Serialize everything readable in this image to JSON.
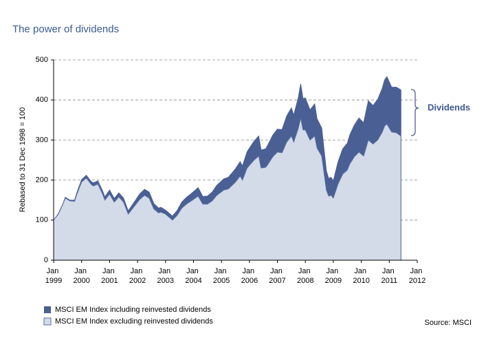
{
  "chart_data": {
    "type": "area",
    "title": "The power of dividends",
    "y_label": "Rebased to 31 Dec 1998 = 100",
    "annotation": "Dividends",
    "source": "Source: MSCI",
    "grid": true,
    "ylim": [
      0,
      500
    ],
    "yticks": [
      0,
      100,
      200,
      300,
      400,
      500
    ],
    "xlim": [
      "1999-01",
      "2012-01"
    ],
    "xticks": [
      {
        "value": "1999-01",
        "label": "Jan 1999"
      },
      {
        "value": "2000-01",
        "label": "Jan 2000"
      },
      {
        "value": "2001-01",
        "label": "Jan 2001"
      },
      {
        "value": "2002-01",
        "label": "Jan 2002"
      },
      {
        "value": "2003-01",
        "label": "Jan 2003"
      },
      {
        "value": "2004-01",
        "label": "Jan 2004"
      },
      {
        "value": "2005-01",
        "label": "Jan 2005"
      },
      {
        "value": "2006-01",
        "label": "Jan 2006"
      },
      {
        "value": "2007-01",
        "label": "Jan 2007"
      },
      {
        "value": "2008-01",
        "label": "Jan 2008"
      },
      {
        "value": "2009-01",
        "label": "Jan 2009"
      },
      {
        "value": "2010-01",
        "label": "Jan 2010"
      },
      {
        "value": "2011-01",
        "label": "Jan 2011"
      },
      {
        "value": "2012-01",
        "label": "Jan 2012"
      }
    ],
    "x": [
      "1999-01",
      "1999-03",
      "1999-05",
      "1999-06",
      "1999-08",
      "1999-10",
      "1999-11",
      "2000-01",
      "2000-03",
      "2000-05",
      "2000-06",
      "2000-08",
      "2000-10",
      "2000-11",
      "2001-01",
      "2001-03",
      "2001-05",
      "2001-07",
      "2001-09",
      "2001-11",
      "2002-02",
      "2002-04",
      "2002-06",
      "2002-08",
      "2002-10",
      "2002-11",
      "2003-01",
      "2003-03",
      "2003-04",
      "2003-06",
      "2003-08",
      "2003-10",
      "2003-12",
      "2004-03",
      "2004-05",
      "2004-07",
      "2004-09",
      "2004-11",
      "2005-02",
      "2005-04",
      "2005-07",
      "2005-09",
      "2005-10",
      "2005-12",
      "2006-03",
      "2006-05",
      "2006-06",
      "2006-08",
      "2006-09",
      "2006-11",
      "2007-01",
      "2007-03",
      "2007-05",
      "2007-07",
      "2007-08",
      "2007-10",
      "2007-11",
      "2007-12",
      "2008-01",
      "2008-03",
      "2008-05",
      "2008-06",
      "2008-08",
      "2008-10",
      "2008-11",
      "2008-12",
      "2009-01",
      "2009-03",
      "2009-05",
      "2009-07",
      "2009-08",
      "2009-10",
      "2009-12",
      "2010-02",
      "2010-04",
      "2010-06",
      "2010-08",
      "2010-10",
      "2010-11",
      "2010-12",
      "2011-02",
      "2011-04",
      "2011-06"
    ],
    "series": [
      {
        "name": "MSCI EM Index including reinvested dividends",
        "color": "#4a5f94",
        "values": [
          100,
          116,
          141,
          157,
          150,
          150,
          169,
          201,
          212,
          197,
          193,
          198,
          173,
          158,
          175,
          154,
          168,
          155,
          123,
          140,
          166,
          177,
          170,
          141,
          130,
          132,
          125,
          115,
          110,
          124,
          145,
          157,
          166,
          181,
          159,
          160,
          170,
          187,
          203,
          207,
          228,
          246,
          235,
          271,
          297,
          310,
          275,
          278,
          289,
          312,
          327,
          326,
          360,
          380,
          362,
          407,
          440,
          403,
          405,
          375,
          390,
          353,
          330,
          223,
          204,
          207,
          198,
          245,
          278,
          292,
          312,
          337,
          355,
          343,
          398,
          386,
          401,
          429,
          450,
          458,
          432,
          432,
          425
        ]
      },
      {
        "name": "MSCI EM Index excluding reinvested dividends",
        "color": "#d3dbe9",
        "values": [
          100,
          115,
          140,
          155,
          148,
          147,
          165,
          195,
          205,
          190,
          185,
          190,
          165,
          150,
          165,
          145,
          158,
          145,
          115,
          130,
          152,
          162,
          155,
          128,
          118,
          120,
          115,
          105,
          100,
          112,
          130,
          140,
          148,
          160,
          140,
          140,
          148,
          162,
          175,
          178,
          195,
          210,
          200,
          230,
          250,
          260,
          230,
          232,
          240,
          258,
          270,
          268,
          295,
          310,
          295,
          330,
          355,
          325,
          325,
          300,
          310,
          280,
          260,
          175,
          160,
          162,
          155,
          190,
          215,
          225,
          240,
          258,
          270,
          260,
          300,
          290,
          300,
          320,
          335,
          340,
          320,
          318,
          310
        ]
      }
    ]
  }
}
